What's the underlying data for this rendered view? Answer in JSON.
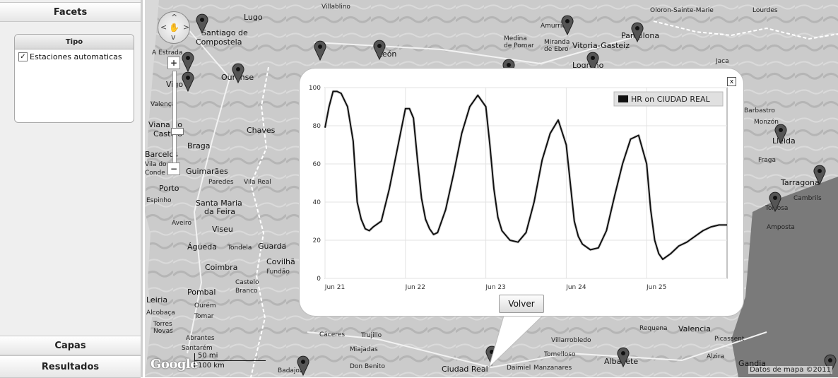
{
  "sidebar": {
    "facets_header": "Facets",
    "facet_box_title": "Tipo",
    "facet_option": "Estaciones automaticas",
    "facet_checked": true,
    "capas_header": "Capas",
    "resultados_header": "Resultados"
  },
  "map": {
    "places": [
      "Lugo",
      "Santiago de",
      "Compostela",
      "A Estrada",
      "Ourense",
      "Vigo",
      "Valença",
      "Chaves",
      "Braga",
      "Guimarães",
      "Porto",
      "Paredes",
      "Vila Real",
      "Espinho",
      "Santa Maria",
      "da Feira",
      "Aveiro",
      "Viseu",
      "Águeda",
      "Tondela",
      "Guarda",
      "Coimbra",
      "Covilhã",
      "Fundão",
      "Castelo",
      "Branco",
      "Pombal",
      "Leiria",
      "Ourém",
      "Alcobaça",
      "Tomar",
      "Torres",
      "Novas",
      "Abrantes",
      "Santarém",
      "Cáceres",
      "Trujillo",
      "Miajadas",
      "Don Benito",
      "Badajoz",
      "Ciudad Real",
      "Daimiel",
      "Manzanares",
      "Tomelloso",
      "Villarrobledo",
      "Albacete",
      "Requena",
      "Valencia",
      "Picassent",
      "Alzira",
      "Gandia",
      "León",
      "Medina",
      "de Pomar",
      "Miranda",
      "de Ebro",
      "Vitoria-Gasteiz",
      "Logroño",
      "Pamplona",
      "Jaca",
      "Lourdes",
      "Oloron-Sainte-Marie",
      "Amurrio",
      "Villablino",
      "Barbastro",
      "Monzón",
      "Lleida",
      "Fraga",
      "Tarragona",
      "Cambrils",
      "Tortosa",
      "Amposta",
      "Viana do",
      "Castelo",
      "Barcelos",
      "Vila do",
      "Conde"
    ],
    "scale_mi": "50 mi",
    "scale_km": "100 km",
    "google_logo": "Google",
    "copyright": "Datos de mapa ©2011"
  },
  "popup": {
    "close_symbol": "x",
    "button_label": "Volver"
  },
  "chart_data": {
    "type": "line",
    "legend": "HR on CIUDAD REAL",
    "x_ticks": [
      "Jun 21",
      "Jun 22",
      "Jun 23",
      "Jun 24",
      "Jun 25"
    ],
    "y_ticks": [
      0,
      20,
      40,
      60,
      80,
      100
    ],
    "ylim": [
      0,
      100
    ],
    "series": [
      {
        "name": "HR on CIUDAD REAL",
        "x_days": [
          0,
          0.05,
          0.1,
          0.15,
          0.2,
          0.28,
          0.35,
          0.4,
          0.45,
          0.5,
          0.55,
          0.6,
          0.7,
          0.8,
          0.9,
          1.0,
          1.05,
          1.1,
          1.15,
          1.2,
          1.25,
          1.3,
          1.35,
          1.4,
          1.5,
          1.6,
          1.7,
          1.8,
          1.9,
          2.0,
          2.05,
          2.1,
          2.15,
          2.2,
          2.3,
          2.4,
          2.5,
          2.6,
          2.7,
          2.8,
          2.9,
          3.0,
          3.05,
          3.1,
          3.15,
          3.2,
          3.3,
          3.4,
          3.5,
          3.6,
          3.7,
          3.8,
          3.9,
          4.0,
          4.05,
          4.1,
          4.15,
          4.2,
          4.3,
          4.4,
          4.5,
          4.6,
          4.7,
          4.8,
          4.9,
          5.0
        ],
        "values": [
          79,
          90,
          98,
          98,
          97,
          90,
          72,
          40,
          31,
          26,
          25,
          27,
          30,
          47,
          68,
          89,
          89,
          84,
          62,
          42,
          31,
          26,
          23,
          24,
          36,
          55,
          76,
          90,
          96,
          90,
          70,
          47,
          32,
          25,
          20,
          19,
          24,
          40,
          62,
          76,
          83,
          70,
          50,
          30,
          22,
          18,
          15,
          16,
          25,
          43,
          60,
          73,
          75,
          60,
          36,
          20,
          13,
          10,
          13,
          17,
          19,
          22,
          25,
          27,
          28,
          28
        ]
      }
    ]
  }
}
